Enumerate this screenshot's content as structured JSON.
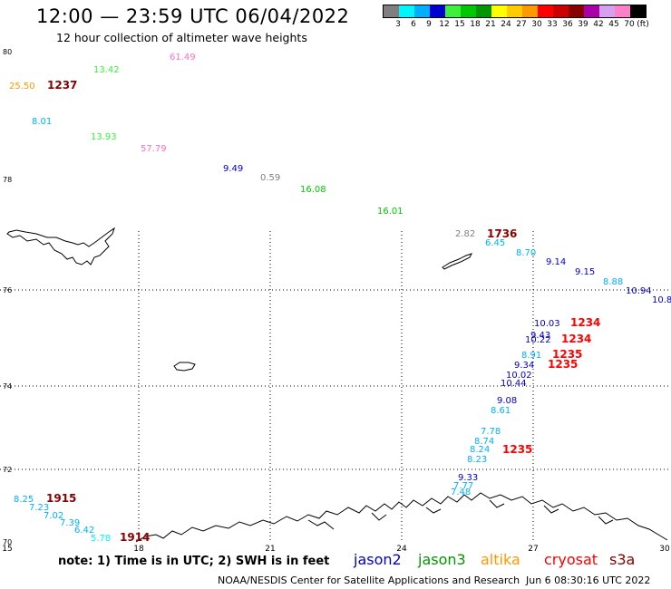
{
  "header": {
    "title": "12:00 — 23:59 UTC 06/04/2022",
    "subtitle": "12 hour collection of altimeter wave heights"
  },
  "colorbar": {
    "colors": [
      "#7f7f7f",
      "#00f5ff",
      "#00b0ff",
      "#0000d0",
      "#3cf03c",
      "#00c800",
      "#009600",
      "#ffff00",
      "#ffcc00",
      "#ff9900",
      "#ff0000",
      "#cc0000",
      "#880000",
      "#aa00aa",
      "#d6a0f0",
      "#ff80c8",
      "#000000"
    ],
    "labels": [
      "3",
      "6",
      "9",
      "12",
      "15",
      "18",
      "21",
      "24",
      "27",
      "30",
      "33",
      "36",
      "39",
      "42",
      "45",
      "70",
      "(ft)"
    ]
  },
  "map": {
    "lat_ticks": [
      "80",
      "78",
      "76",
      "74",
      "72",
      "70"
    ],
    "lon_ticks": [
      "15",
      "18",
      "21",
      "24",
      "27",
      "30"
    ],
    "wave_heights": [
      {
        "text": "61.49",
        "color": "#ff70c0"
      },
      {
        "text": "13.42",
        "color": "#3cf03c"
      },
      {
        "text": "25.50",
        "color": "#ff9900"
      },
      {
        "text": "1237",
        "color": "#880000",
        "bold": true
      },
      {
        "text": "8.01",
        "color": "#00b0ff"
      },
      {
        "text": "13.93",
        "color": "#3cf03c"
      },
      {
        "text": "57.79",
        "color": "#ff70c0"
      },
      {
        "text": "9.49",
        "color": "#0000d0"
      },
      {
        "text": "0.59",
        "color": "#7f7f7f"
      },
      {
        "text": "16.08",
        "color": "#00c800"
      },
      {
        "text": "16.01",
        "color": "#00c800"
      },
      {
        "text": "2.82",
        "color": "#7f7f7f"
      },
      {
        "text": "1736",
        "color": "#880000",
        "bold": true
      },
      {
        "text": "6.45",
        "color": "#00b0ff"
      },
      {
        "text": "8.70",
        "color": "#00b0ff"
      },
      {
        "text": "9.14",
        "color": "#0000d0"
      },
      {
        "text": "9.15",
        "color": "#0000d0"
      },
      {
        "text": "8.88",
        "color": "#00b0ff"
      },
      {
        "text": "10.94",
        "color": "#0000d0"
      },
      {
        "text": "10.8",
        "color": "#0000d0"
      },
      {
        "text": "10.03",
        "color": "#0000d0"
      },
      {
        "text": "1234",
        "color": "#ff0000",
        "bold": true
      },
      {
        "text": "9.43",
        "color": "#0000d0"
      },
      {
        "text": "10.22",
        "color": "#0000d0"
      },
      {
        "text": "1234",
        "color": "#ff0000",
        "bold": true
      },
      {
        "text": "8.91",
        "color": "#00b0ff"
      },
      {
        "text": "1235",
        "color": "#ff0000",
        "bold": true
      },
      {
        "text": "9.34",
        "color": "#0000d0"
      },
      {
        "text": "1235",
        "color": "#ff0000",
        "bold": true
      },
      {
        "text": "10.02",
        "color": "#0000d0"
      },
      {
        "text": "10.44",
        "color": "#0000d0"
      },
      {
        "text": "9.08",
        "color": "#0000d0"
      },
      {
        "text": "8.61",
        "color": "#00b0ff"
      },
      {
        "text": "7.78",
        "color": "#00b0ff"
      },
      {
        "text": "8.74",
        "color": "#00b0ff"
      },
      {
        "text": "8.24",
        "color": "#00b0ff"
      },
      {
        "text": "1235",
        "color": "#ff0000",
        "bold": true
      },
      {
        "text": "8.23",
        "color": "#00b0ff"
      },
      {
        "text": "9.33",
        "color": "#0000d0"
      },
      {
        "text": "7.77",
        "color": "#00b0ff"
      },
      {
        "text": "7.48",
        "color": "#00b0ff"
      },
      {
        "text": "8.25",
        "color": "#00b0ff"
      },
      {
        "text": "1915",
        "color": "#880000",
        "bold": true
      },
      {
        "text": "7.23",
        "color": "#00b0ff"
      },
      {
        "text": "7.02",
        "color": "#00b0ff"
      },
      {
        "text": "7.39",
        "color": "#00b0ff"
      },
      {
        "text": "6.42",
        "color": "#00b0ff"
      },
      {
        "text": "5.78",
        "color": "#00f5ff"
      },
      {
        "text": "1914",
        "color": "#880000",
        "bold": true
      }
    ]
  },
  "footer": {
    "note": "note:  1) Time is in UTC;  2) SWH is in feet",
    "satellites": [
      {
        "name": "jason2",
        "color": "#0000d0"
      },
      {
        "name": "jason3",
        "color": "#009600"
      },
      {
        "name": "altika",
        "color": "#ff9900"
      },
      {
        "name": "cryosat",
        "color": "#ff0000"
      },
      {
        "name": "s3a",
        "color": "#880000"
      }
    ],
    "credit": "NOAA/NESDIS Center for Satellite Applications and Research",
    "timestamp": "Jun  6 08:30:16 UTC 2022"
  }
}
